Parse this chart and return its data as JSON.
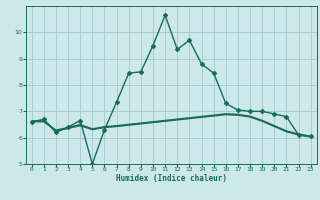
{
  "xlabel": "Humidex (Indice chaleur)",
  "xlim": [
    -0.5,
    23.5
  ],
  "ylim": [
    5,
    11
  ],
  "yticks": [
    5,
    6,
    7,
    8,
    9,
    10
  ],
  "xticks": [
    0,
    1,
    2,
    3,
    4,
    5,
    6,
    7,
    8,
    9,
    10,
    11,
    12,
    13,
    14,
    15,
    16,
    17,
    18,
    19,
    20,
    21,
    22,
    23
  ],
  "bg_color": "#cce8ea",
  "grid_color": "#a0c8cc",
  "line_color": "#1a6b5a",
  "lines": [
    {
      "x": [
        0,
        1,
        2,
        3,
        4,
        5,
        6,
        7,
        8,
        9,
        10,
        11,
        12,
        13,
        14,
        15,
        16,
        17,
        18,
        19,
        20,
        21,
        22,
        23
      ],
      "y": [
        6.6,
        6.7,
        6.2,
        6.4,
        6.65,
        5.0,
        6.3,
        7.35,
        8.45,
        8.5,
        9.5,
        10.65,
        9.35,
        9.7,
        8.8,
        8.45,
        7.3,
        7.05,
        7.0,
        7.0,
        6.9,
        6.8,
        6.1,
        6.05
      ],
      "marker": "D",
      "markersize": 2.0,
      "linewidth": 1.0
    },
    {
      "x": [
        0,
        1,
        2,
        3,
        4,
        5,
        6,
        7,
        8,
        9,
        10,
        11,
        12,
        13,
        14,
        15,
        16,
        17,
        18,
        19,
        20,
        21,
        22,
        23
      ],
      "y": [
        6.6,
        6.6,
        6.25,
        6.35,
        6.45,
        6.3,
        6.38,
        6.42,
        6.47,
        6.52,
        6.57,
        6.62,
        6.67,
        6.72,
        6.77,
        6.82,
        6.87,
        6.85,
        6.78,
        6.62,
        6.42,
        6.22,
        6.1,
        6.02
      ],
      "marker": null,
      "markersize": 0,
      "linewidth": 0.8
    },
    {
      "x": [
        0,
        1,
        2,
        3,
        4,
        5,
        6,
        7,
        8,
        9,
        10,
        11,
        12,
        13,
        14,
        15,
        16,
        17,
        18,
        19,
        20,
        21,
        22,
        23
      ],
      "y": [
        6.62,
        6.62,
        6.27,
        6.37,
        6.48,
        6.32,
        6.4,
        6.44,
        6.49,
        6.54,
        6.59,
        6.64,
        6.69,
        6.74,
        6.79,
        6.84,
        6.89,
        6.87,
        6.8,
        6.64,
        6.44,
        6.24,
        6.12,
        6.04
      ],
      "marker": null,
      "markersize": 0,
      "linewidth": 0.8
    },
    {
      "x": [
        0,
        1,
        2,
        3,
        4,
        5,
        6,
        7,
        8,
        9,
        10,
        11,
        12,
        13,
        14,
        15,
        16,
        17,
        18,
        19,
        20,
        21,
        22,
        23
      ],
      "y": [
        6.64,
        6.64,
        6.29,
        6.39,
        6.5,
        6.34,
        6.42,
        6.46,
        6.51,
        6.56,
        6.61,
        6.66,
        6.71,
        6.76,
        6.81,
        6.86,
        6.91,
        6.89,
        6.82,
        6.66,
        6.46,
        6.26,
        6.14,
        6.06
      ],
      "marker": null,
      "markersize": 0,
      "linewidth": 0.8
    }
  ]
}
